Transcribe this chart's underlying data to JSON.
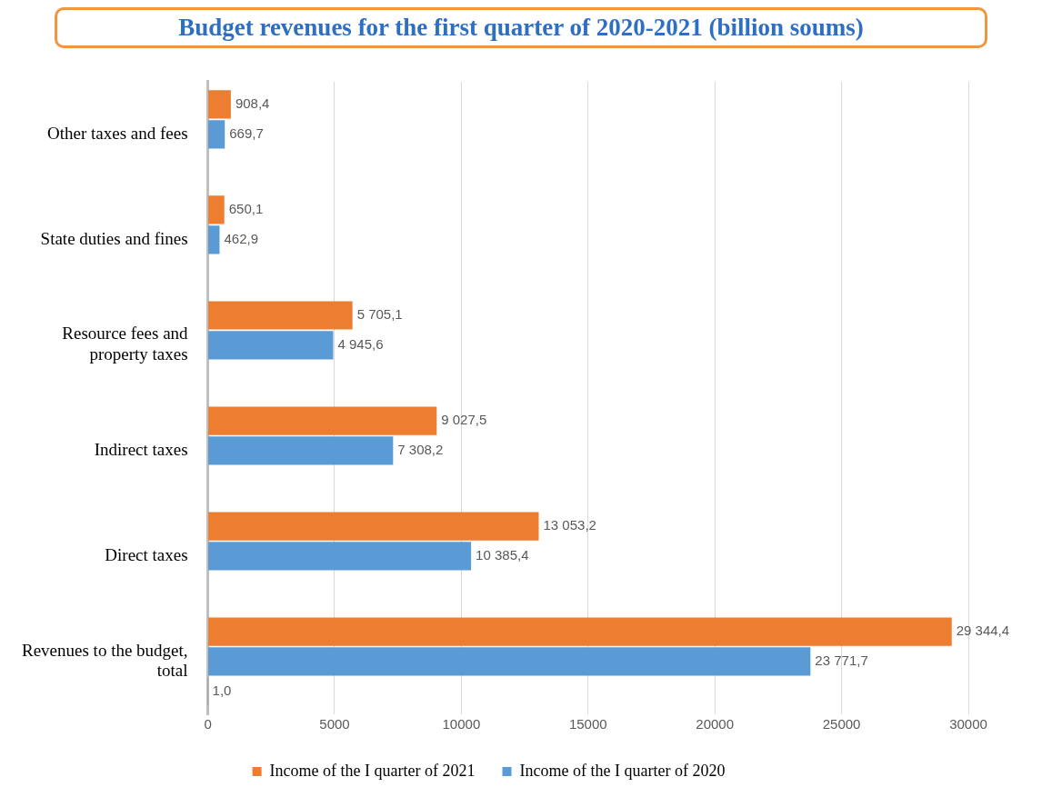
{
  "chart_data": {
    "type": "bar",
    "orientation": "horizontal",
    "title": "Budget revenues for the first quarter of 2020-2021 (billion soums)",
    "categories": [
      "Other taxes and fees",
      "State duties and fines",
      "Resource fees and property taxes",
      "Indirect taxes",
      "Direct taxes",
      "Revenues to the budget, total"
    ],
    "series": [
      {
        "name": "Income of the I quarter of 2021",
        "color": "#ed7d31",
        "values": [
          908.4,
          650.1,
          5705.1,
          9027.5,
          13053.2,
          29344.4
        ],
        "value_labels": [
          "908,4",
          "650,1",
          "5 705,1",
          "9 027,5",
          "13 053,2",
          "29 344,4"
        ]
      },
      {
        "name": "Income of the I quarter of 2020",
        "color": "#5b9bd5",
        "values": [
          669.7,
          462.9,
          4945.6,
          7308.2,
          10385.4,
          23771.7
        ],
        "value_labels": [
          "669,7",
          "462,9",
          "4 945,6",
          "7 308,2",
          "10 385,4",
          "23 771,7"
        ]
      },
      {
        "color": "#1e5a1e",
        "values": [
          null,
          null,
          null,
          null,
          null,
          1.0
        ],
        "value_labels": [
          null,
          null,
          null,
          null,
          null,
          "1,0"
        ]
      }
    ],
    "xlim": [
      0,
      30000
    ],
    "xticks": [
      0,
      5000,
      10000,
      15000,
      20000,
      25000,
      30000
    ],
    "grid": "x",
    "legend": "bottom"
  }
}
